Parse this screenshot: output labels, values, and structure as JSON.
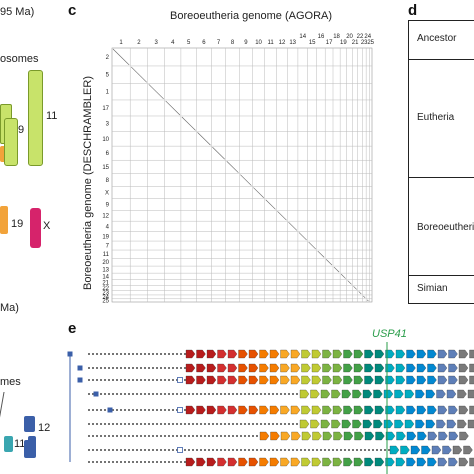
{
  "left_column": {
    "ma_top": "95 Ma)",
    "somes_top": "osomes",
    "chr_11": "11",
    "chr_9": "9",
    "chr_19": "19",
    "chr_x": "X",
    "ma_bottom": "Ma)",
    "somes_bottom": "mes",
    "chr_11b": "11",
    "chr_12": "12",
    "colors": {
      "green": "#c8e36a",
      "orange": "#f2a33a",
      "magenta": "#d6236b",
      "blue": "#3b5fa8",
      "teal": "#3aa6b0"
    }
  },
  "panel_c": {
    "label": "c",
    "title": "Boreoeutheria genome (AGORA)",
    "ylabel": "Boreoeutheria genome (DESCHRAMBLER)",
    "x_ticks": [
      "1",
      "2",
      "3",
      "4",
      "5",
      "6",
      "7",
      "8",
      "9",
      "10",
      "11",
      "12",
      "13",
      "14",
      "15",
      "16",
      "17",
      "18",
      "19",
      "20",
      "21",
      "22",
      "23",
      "24",
      "25"
    ],
    "y_ticks": [
      "2",
      "5",
      "1",
      "17",
      "3",
      "10",
      "6",
      "15",
      "8",
      "X",
      "9",
      "12",
      "4",
      "19",
      "7",
      "11",
      "20",
      "13",
      "14",
      "21",
      "22",
      "23",
      "24",
      "25"
    ]
  },
  "panel_d": {
    "label": "d",
    "rows": [
      "Ancestor",
      "Eutheria",
      "Boreoeutheria",
      "Simian"
    ]
  },
  "panel_e": {
    "label": "e",
    "gene_label": "USP41",
    "gene_color": "#2a9d4a"
  }
}
